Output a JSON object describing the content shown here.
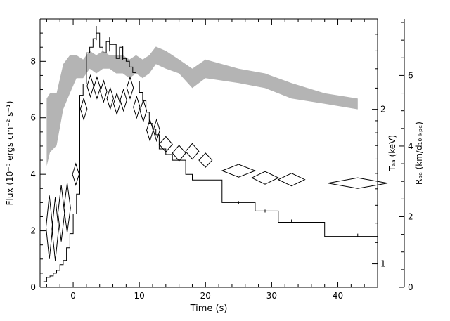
{
  "chart_data": {
    "type": "line",
    "title": "",
    "xlabel": "Time (s)",
    "ylabel_left": "Flux (10⁻⁹ ergs cm⁻² s⁻¹)",
    "ylabel_right_1": "Tₐₐ (keV)",
    "ylabel_right_2": "Rₐₐ (km/d₁₀ ₖₚₑ)",
    "xlim": [
      -5,
      46
    ],
    "ylim_flux": [
      0,
      9.5
    ],
    "ylim_tbb_log": [
      0.9,
      3.0
    ],
    "ylim_rbb": [
      0,
      7.6
    ],
    "x_ticks": [
      0,
      10,
      20,
      30,
      40
    ],
    "x_tick_labels": [
      "0",
      "10",
      "20",
      "30",
      "40"
    ],
    "flux_ticks": [
      0,
      2,
      4,
      6,
      8
    ],
    "flux_tick_labels": [
      "0",
      "2",
      "4",
      "6",
      "8"
    ],
    "tbb_major_ticks": [
      1,
      2
    ],
    "tbb_tick_labels": [
      "1",
      "2"
    ],
    "tbb_minor_ticks": [
      1.1,
      1.2,
      1.3,
      1.4,
      1.5,
      1.6,
      1.7,
      1.8,
      1.9,
      2.2,
      2.4,
      2.6,
      2.8
    ],
    "rbb_ticks": [
      0,
      2,
      4,
      6
    ],
    "rbb_tick_labels": [
      "0",
      "2",
      "4",
      "6"
    ],
    "series": [
      {
        "key": "flux",
        "style": "histogram",
        "color": "#000000",
        "bins": [
          [
            -4.5,
            -4,
            0.2
          ],
          [
            -4,
            -3.5,
            0.35
          ],
          [
            -3.5,
            -3,
            0.4
          ],
          [
            -3,
            -2.5,
            0.5
          ],
          [
            -2.5,
            -2,
            0.6
          ],
          [
            -2,
            -1.5,
            0.8
          ],
          [
            -1.5,
            -1,
            0.95
          ],
          [
            -1,
            -0.5,
            1.4
          ],
          [
            -0.5,
            0,
            1.9
          ],
          [
            0,
            0.5,
            2.6
          ],
          [
            0.5,
            1,
            3.3
          ],
          [
            1,
            1.5,
            6.8
          ],
          [
            1.5,
            2,
            7.2
          ],
          [
            2,
            2.5,
            8.3
          ],
          [
            2.5,
            3,
            8.5
          ],
          [
            3,
            3.5,
            8.8
          ],
          [
            3.5,
            4,
            9.0
          ],
          [
            4,
            4.5,
            8.5
          ],
          [
            4.5,
            5,
            8.3
          ],
          [
            5,
            5.5,
            8.7
          ],
          [
            5.5,
            6,
            8.6
          ],
          [
            6,
            6.5,
            8.6
          ],
          [
            6.5,
            7,
            8.1
          ],
          [
            7,
            7.5,
            8.5
          ],
          [
            7.5,
            8,
            8.1
          ],
          [
            8,
            8.5,
            8.0
          ],
          [
            8.5,
            9,
            7.8
          ],
          [
            9,
            9.5,
            7.6
          ],
          [
            9.5,
            10,
            7.3
          ],
          [
            10,
            10.5,
            6.9
          ],
          [
            10.5,
            11,
            6.6
          ],
          [
            11,
            11.5,
            6.2
          ],
          [
            11.5,
            12,
            5.8
          ],
          [
            12,
            12.5,
            5.6
          ],
          [
            12.5,
            13,
            5.4
          ],
          [
            13,
            14,
            4.9
          ],
          [
            14,
            15,
            4.7
          ],
          [
            15,
            17,
            4.5
          ],
          [
            17,
            18,
            4.0
          ],
          [
            18,
            20,
            3.8
          ],
          [
            20,
            22.5,
            3.8
          ],
          [
            22.5,
            27.5,
            3.0
          ],
          [
            27.5,
            31,
            2.7
          ],
          [
            31,
            38,
            2.3
          ],
          [
            38,
            46,
            1.8
          ]
        ],
        "errors": [
          [
            3.5,
            9.0,
            0.25
          ],
          [
            5.5,
            8.6,
            0.25
          ],
          [
            7.5,
            8.3,
            0.25
          ],
          [
            25,
            3.0,
            0.05
          ],
          [
            29,
            2.7,
            0.05
          ],
          [
            33,
            2.35,
            0.05
          ],
          [
            43,
            1.85,
            0.05
          ]
        ]
      },
      {
        "key": "tbb",
        "style": "band",
        "color": "#b4b4b4",
        "x": [
          -4,
          -3.5,
          -2.5,
          -1.5,
          -0.5,
          0.5,
          1.5,
          2.5,
          3.5,
          4.5,
          5.5,
          6.5,
          7.5,
          8.5,
          9.5,
          10.5,
          11.5,
          12.5,
          14,
          16,
          18,
          20,
          25,
          29,
          33,
          38,
          43
        ],
        "upper": [
          2.1,
          2.15,
          2.15,
          2.45,
          2.55,
          2.55,
          2.5,
          2.6,
          2.55,
          2.6,
          2.55,
          2.55,
          2.55,
          2.5,
          2.55,
          2.5,
          2.55,
          2.65,
          2.6,
          2.5,
          2.4,
          2.5,
          2.4,
          2.35,
          2.25,
          2.15,
          2.1
        ],
        "lower": [
          1.55,
          1.65,
          1.7,
          2.0,
          2.15,
          2.3,
          2.3,
          2.4,
          2.35,
          2.4,
          2.4,
          2.35,
          2.35,
          2.3,
          2.35,
          2.3,
          2.35,
          2.45,
          2.4,
          2.35,
          2.2,
          2.3,
          2.25,
          2.2,
          2.1,
          2.05,
          2.0
        ]
      },
      {
        "key": "rbb",
        "style": "diamond",
        "color": "#000000",
        "points": [
          [
            -3.6,
            1.7,
            0.5,
            0.9
          ],
          [
            -2.7,
            1.65,
            0.5,
            0.9
          ],
          [
            -1.8,
            2.1,
            0.5,
            0.8
          ],
          [
            -0.9,
            2.25,
            0.5,
            0.7
          ],
          [
            0.4,
            3.2,
            0.5,
            0.3
          ],
          [
            1.6,
            5.05,
            0.5,
            0.3
          ],
          [
            2.6,
            5.7,
            0.5,
            0.3
          ],
          [
            3.6,
            5.65,
            0.5,
            0.3
          ],
          [
            4.6,
            5.55,
            0.5,
            0.3
          ],
          [
            5.6,
            5.35,
            0.5,
            0.3
          ],
          [
            6.6,
            5.2,
            0.5,
            0.3
          ],
          [
            7.6,
            5.3,
            0.5,
            0.3
          ],
          [
            8.6,
            5.65,
            0.5,
            0.3
          ],
          [
            9.6,
            5.1,
            0.5,
            0.3
          ],
          [
            10.6,
            5.0,
            0.5,
            0.3
          ],
          [
            11.6,
            4.45,
            0.5,
            0.3
          ],
          [
            12.6,
            4.45,
            0.5,
            0.3
          ],
          [
            14,
            4.05,
            1.0,
            0.22
          ],
          [
            16,
            3.8,
            1.0,
            0.22
          ],
          [
            18,
            3.85,
            1.0,
            0.22
          ],
          [
            20,
            3.6,
            1.0,
            0.2
          ],
          [
            25,
            3.3,
            2.5,
            0.18
          ],
          [
            29,
            3.1,
            2.0,
            0.18
          ],
          [
            33,
            3.05,
            2.0,
            0.18
          ],
          [
            43,
            2.95,
            4.5,
            0.15
          ]
        ]
      }
    ]
  }
}
